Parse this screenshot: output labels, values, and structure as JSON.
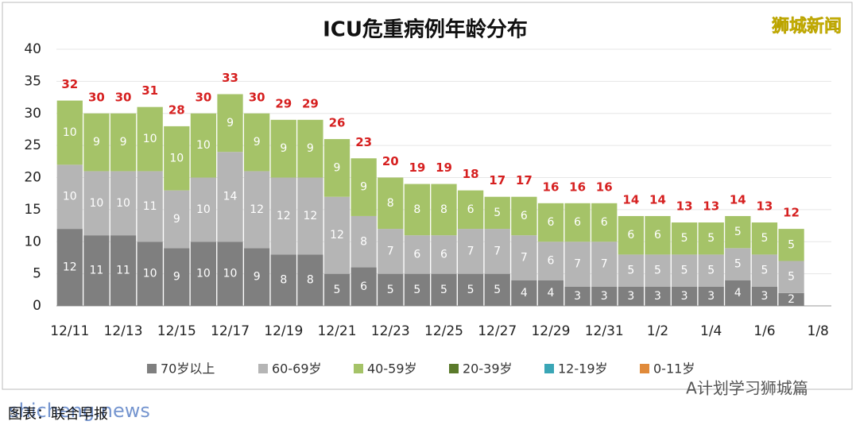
{
  "chart_data": {
    "type": "stacked_bar",
    "title": "ICU危重病例年龄分布",
    "categories": [
      "12/11",
      null,
      "12/13",
      null,
      "12/15",
      null,
      "12/17",
      null,
      "12/19",
      null,
      "12/21",
      null,
      "12/23",
      null,
      "12/25",
      null,
      "12/27",
      null,
      "12/29",
      null,
      "12/31",
      null,
      "1/2",
      null,
      "1/4",
      null,
      "1/6",
      null,
      "1/8"
    ],
    "series": [
      {
        "name": "70岁以上",
        "color": "#7f7f7f",
        "values": [
          12,
          11,
          11,
          10,
          9,
          10,
          10,
          9,
          8,
          8,
          5,
          6,
          5,
          5,
          5,
          5,
          5,
          4,
          4,
          3,
          3,
          3,
          3,
          3,
          3,
          4,
          3,
          2,
          null
        ]
      },
      {
        "name": "60-69岁",
        "color": "#b5b5b5",
        "values": [
          10,
          10,
          10,
          11,
          9,
          10,
          14,
          12,
          12,
          12,
          12,
          8,
          7,
          6,
          6,
          7,
          7,
          7,
          6,
          7,
          7,
          5,
          5,
          5,
          5,
          5,
          5,
          5,
          null
        ]
      },
      {
        "name": "40-59岁",
        "color": "#a5c368",
        "values": [
          10,
          9,
          9,
          10,
          10,
          10,
          9,
          9,
          9,
          9,
          9,
          9,
          8,
          8,
          8,
          6,
          5,
          6,
          6,
          6,
          6,
          6,
          6,
          5,
          5,
          5,
          5,
          5,
          null
        ]
      },
      {
        "name": "20-39岁",
        "color": "#5b7a2b",
        "values": [
          0,
          0,
          0,
          0,
          0,
          0,
          0,
          0,
          0,
          0,
          0,
          0,
          0,
          0,
          0,
          0,
          0,
          0,
          0,
          0,
          0,
          0,
          0,
          0,
          0,
          0,
          0,
          0,
          null
        ]
      },
      {
        "name": "12-19岁",
        "color": "#3aa6b6",
        "values": [
          0,
          0,
          0,
          0,
          0,
          0,
          0,
          0,
          0,
          0,
          0,
          0,
          0,
          0,
          0,
          0,
          0,
          0,
          0,
          0,
          0,
          0,
          0,
          0,
          0,
          0,
          0,
          0,
          null
        ]
      },
      {
        "name": "0-11岁",
        "color": "#e08a3a",
        "values": [
          0,
          0,
          0,
          0,
          0,
          0,
          0,
          0,
          0,
          0,
          0,
          0,
          0,
          0,
          0,
          0,
          0,
          0,
          0,
          0,
          0,
          0,
          0,
          0,
          0,
          0,
          0,
          0,
          null
        ]
      }
    ],
    "totals": [
      32,
      30,
      30,
      31,
      28,
      30,
      33,
      30,
      29,
      29,
      26,
      23,
      20,
      19,
      19,
      18,
      17,
      17,
      16,
      16,
      16,
      14,
      14,
      13,
      13,
      14,
      13,
      12,
      null
    ],
    "ylim": [
      0,
      40
    ],
    "yticks": [
      0,
      5,
      10,
      15,
      20,
      25,
      30,
      35,
      40
    ],
    "grid": true,
    "legend": "bottom",
    "annotations": [
      "狮城新闻",
      "A计划学习狮城篇",
      "shicheng.news",
      "图表：联合早报"
    ]
  }
}
